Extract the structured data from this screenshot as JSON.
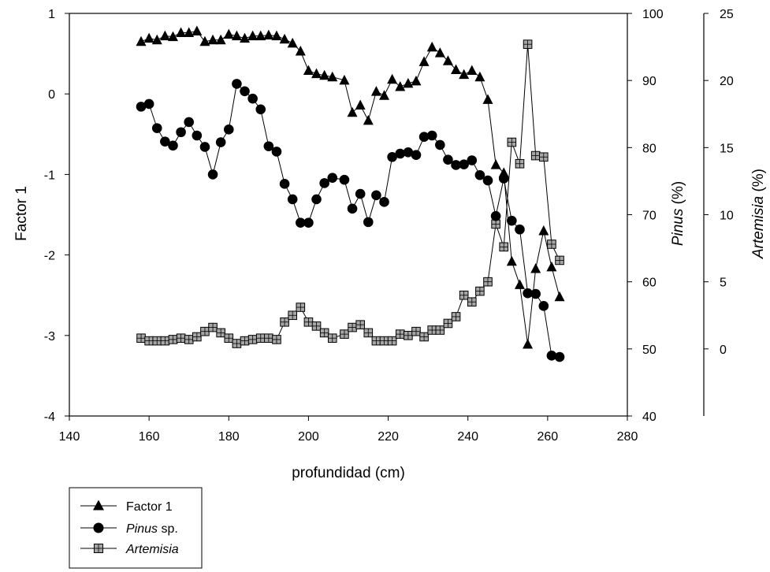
{
  "chart_data": {
    "type": "line",
    "xlabel": "profundidad (cm)",
    "xlim": [
      140,
      280
    ],
    "xticks": [
      140,
      160,
      180,
      200,
      220,
      240,
      260,
      280
    ],
    "axes": {
      "left": {
        "label": "Factor 1",
        "lim": [
          -4,
          1
        ],
        "ticks": [
          1,
          0,
          -1,
          -2,
          -3,
          -4
        ]
      },
      "right1": {
        "label_italic": "Pinus",
        "label_rest": " (%)",
        "lim": [
          40,
          100
        ],
        "ticks": [
          100,
          90,
          80,
          70,
          60,
          50,
          40
        ]
      },
      "right2": {
        "label_italic": "Artemisia",
        "label_rest": " (%)",
        "lim": [
          -5,
          25
        ],
        "ticks": [
          25,
          20,
          15,
          10,
          5,
          0
        ]
      }
    },
    "grid": false,
    "legend_position": "below-left",
    "series": [
      {
        "name": "Factor 1",
        "marker": "triangle",
        "axis": "left",
        "x": [
          158,
          160,
          162,
          164,
          166,
          168,
          170,
          172,
          174,
          176,
          178,
          180,
          182,
          184,
          186,
          188,
          190,
          192,
          194,
          196,
          198,
          200,
          202,
          204,
          206,
          209,
          211,
          213,
          215,
          217,
          219,
          221,
          223,
          225,
          227,
          229,
          231,
          233,
          235,
          237,
          239,
          241,
          243,
          245,
          247,
          249,
          251,
          253,
          255,
          257,
          259,
          261,
          263
        ],
        "y": [
          0.65,
          0.69,
          0.67,
          0.72,
          0.71,
          0.76,
          0.76,
          0.78,
          0.65,
          0.67,
          0.67,
          0.74,
          0.72,
          0.69,
          0.72,
          0.72,
          0.73,
          0.72,
          0.68,
          0.63,
          0.53,
          0.29,
          0.25,
          0.23,
          0.21,
          0.17,
          -0.23,
          -0.14,
          -0.33,
          0.03,
          -0.02,
          0.18,
          0.09,
          0.13,
          0.16,
          0.4,
          0.58,
          0.51,
          0.41,
          0.3,
          0.24,
          0.29,
          0.21,
          -0.07,
          -0.88,
          -0.98,
          -2.08,
          -2.37,
          -3.11,
          -2.17,
          -1.7,
          -2.15,
          -2.52
        ]
      },
      {
        "name_italic": "Pinus",
        "name_rest": " sp.",
        "marker": "circle",
        "axis": "right1",
        "x": [
          158,
          160,
          162,
          164,
          166,
          168,
          170,
          172,
          174,
          176,
          178,
          180,
          182,
          184,
          186,
          188,
          190,
          192,
          194,
          196,
          198,
          200,
          202,
          204,
          206,
          209,
          211,
          213,
          215,
          217,
          219,
          221,
          223,
          225,
          227,
          229,
          231,
          233,
          235,
          237,
          239,
          241,
          243,
          245,
          247,
          249,
          251,
          253,
          255,
          257,
          259,
          261,
          263
        ],
        "y": [
          86.1,
          86.5,
          82.9,
          80.9,
          80.3,
          82.3,
          83.8,
          81.8,
          80.1,
          76.0,
          80.8,
          82.7,
          89.5,
          88.4,
          87.3,
          85.7,
          80.2,
          79.4,
          74.6,
          72.3,
          68.8,
          68.8,
          72.3,
          74.7,
          75.5,
          75.2,
          70.9,
          73.1,
          68.9,
          72.9,
          71.9,
          78.6,
          79.1,
          79.3,
          78.9,
          81.6,
          81.8,
          80.4,
          78.2,
          77.4,
          77.5,
          78.1,
          75.9,
          75.1,
          69.8,
          75.4,
          69.1,
          67.8,
          58.3,
          58.2,
          56.4,
          49.0,
          48.8
        ]
      },
      {
        "name_italic": "Artemisia",
        "marker": "square",
        "axis": "right2",
        "x": [
          158,
          160,
          162,
          164,
          166,
          168,
          170,
          172,
          174,
          176,
          178,
          180,
          182,
          184,
          186,
          188,
          190,
          192,
          194,
          196,
          198,
          200,
          202,
          204,
          206,
          209,
          211,
          213,
          215,
          217,
          219,
          221,
          223,
          225,
          227,
          229,
          231,
          233,
          235,
          237,
          239,
          241,
          243,
          245,
          247,
          249,
          251,
          253,
          255,
          257,
          259,
          261,
          263
        ],
        "y": [
          0.8,
          0.6,
          0.6,
          0.6,
          0.7,
          0.8,
          0.7,
          0.9,
          1.3,
          1.6,
          1.2,
          0.8,
          0.4,
          0.6,
          0.7,
          0.8,
          0.8,
          0.7,
          2.0,
          2.5,
          3.1,
          2.0,
          1.7,
          1.2,
          0.8,
          1.1,
          1.6,
          1.8,
          1.2,
          0.6,
          0.6,
          0.6,
          1.1,
          1.0,
          1.3,
          0.9,
          1.4,
          1.4,
          1.9,
          2.4,
          4.0,
          3.5,
          4.3,
          5.0,
          9.3,
          7.6,
          15.4,
          13.8,
          22.7,
          14.4,
          14.3,
          7.8,
          6.6
        ]
      }
    ]
  }
}
